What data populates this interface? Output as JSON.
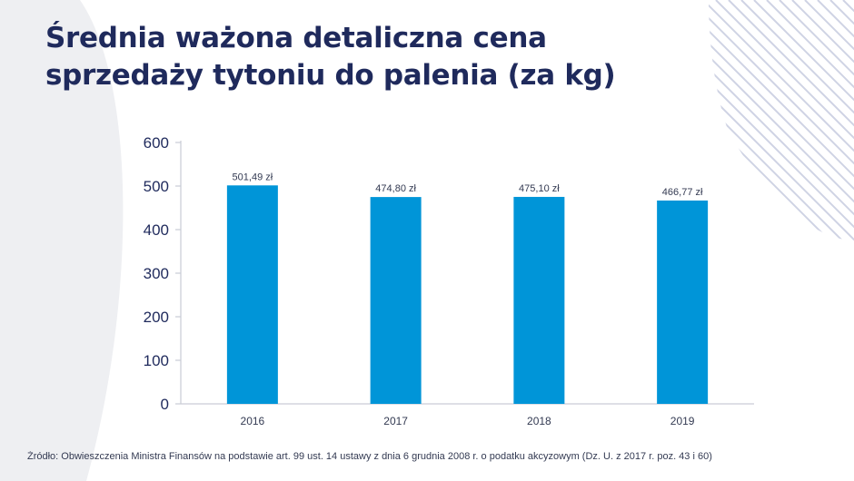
{
  "title_lines": [
    "Średnia ważona detaliczna cena",
    "sprzedaży tytoniu do palenia (za kg)"
  ],
  "colors": {
    "title": "#1f2a5c",
    "bar": "#0095d8",
    "axis": "#c9ccd6",
    "tick_text": "#1f2a5c",
    "decor": "#eeeff2",
    "stripes": "#cfd3e4"
  },
  "chart_data": {
    "type": "bar",
    "title": "Średnia ważona detaliczna cena sprzedaży tytoniu do palenia (za kg)",
    "categories": [
      "2016",
      "2017",
      "2018",
      "2019"
    ],
    "values": [
      501.49,
      474.8,
      475.1,
      466.77
    ],
    "data_labels": [
      "501,49 zł",
      "474,80 zł",
      "475,10 zł",
      "466,77 zł"
    ],
    "y_ticks": [
      "0",
      "100",
      "200",
      "300",
      "400",
      "500",
      "600"
    ],
    "ylim": [
      0,
      600
    ],
    "xlabel": "",
    "ylabel": "",
    "grid": false,
    "legend": "none"
  },
  "source": "Źródło: Obwieszczenia Ministra Finansów na podstawie art. 99 ust. 14 ustawy z dnia 6 grudnia 2008 r. o podatku akcyzowym (Dz. U. z 2017 r. poz. 43 i 60)"
}
